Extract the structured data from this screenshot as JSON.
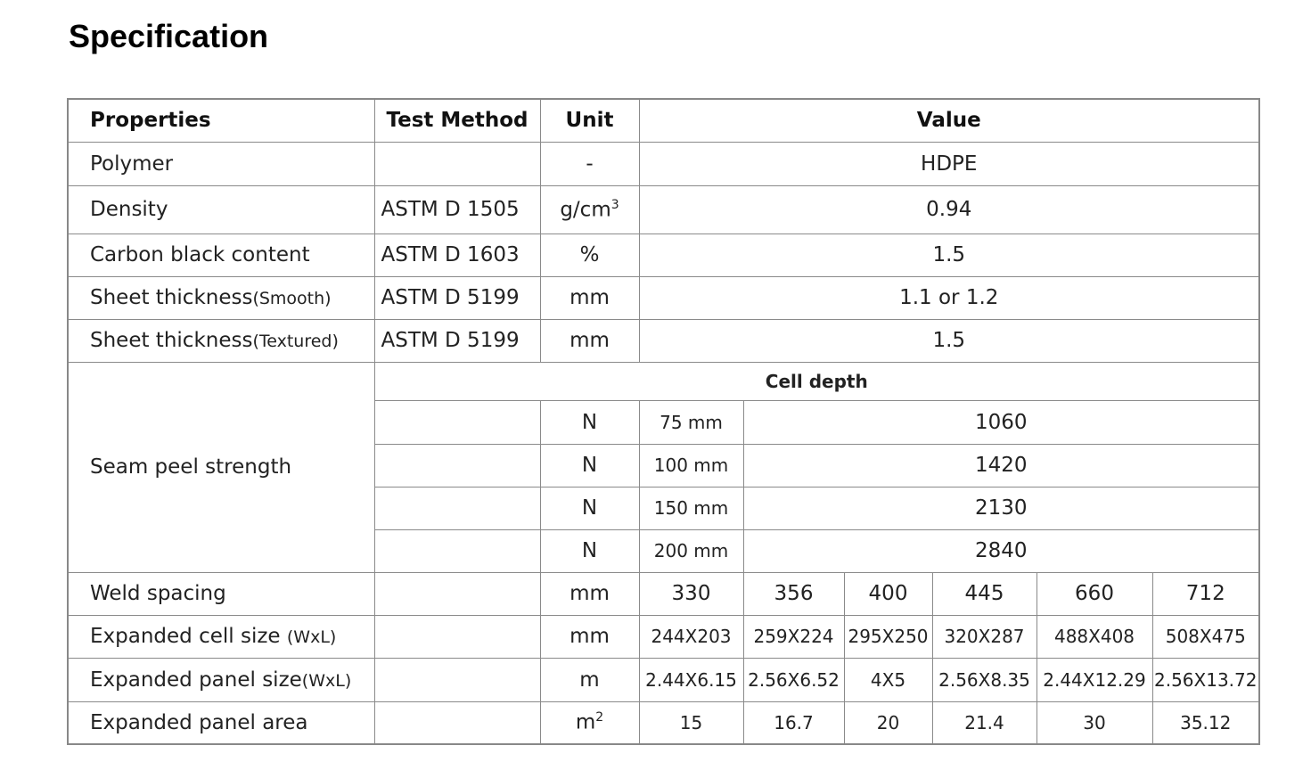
{
  "title": "Specification",
  "header": {
    "properties": "Properties",
    "test_method": "Test Method",
    "unit": "Unit",
    "value": "Value"
  },
  "rows": [
    {
      "property": "Polymer",
      "method": "",
      "unit": "-",
      "value": "HDPE"
    },
    {
      "property": "Density",
      "method": "ASTM D 1505",
      "unit": "g/cm",
      "unit_sup": "3",
      "value": "0.94"
    },
    {
      "property": "Carbon black content",
      "method": "ASTM D 1603",
      "unit": "%",
      "value": "1.5"
    },
    {
      "property": "Sheet thickness",
      "property_note": "(Smooth)",
      "method": "ASTM D 5199",
      "unit": "mm",
      "value": "1.1 or 1.2"
    },
    {
      "property": "Sheet thickness",
      "property_note": "(Textured)",
      "method": "ASTM D 5199",
      "unit": "mm",
      "value": "1.5"
    }
  ],
  "seam": {
    "property": "Seam peel strength",
    "cell_depth_label": "Cell depth",
    "rows": [
      {
        "unit": "N",
        "depth": "75 mm",
        "value": "1060"
      },
      {
        "unit": "N",
        "depth": "100 mm",
        "value": "1420"
      },
      {
        "unit": "N",
        "depth": "150 mm",
        "value": "2130"
      },
      {
        "unit": "N",
        "depth": "200 mm",
        "value": "2840"
      }
    ]
  },
  "multi": [
    {
      "property": "Weld spacing",
      "note": "",
      "unit": "mm",
      "values": [
        "330",
        "356",
        "400",
        "445",
        "660",
        "712"
      ]
    },
    {
      "property": "Expanded cell size ",
      "note": "(WxL)",
      "unit": "mm",
      "values": [
        "244X203",
        "259X224",
        "295X250",
        "320X287",
        "488X408",
        "508X475"
      ]
    },
    {
      "property": "Expanded panel size",
      "note": "(WxL)",
      "unit": "m",
      "values": [
        "2.44X6.15",
        "2.56X6.52",
        "4X5",
        "2.56X8.35",
        "2.44X12.29",
        "2.56X13.72"
      ]
    },
    {
      "property": "Expanded panel area",
      "note": "",
      "unit": "m",
      "unit_sup": "2",
      "values": [
        "15",
        "16.7",
        "20",
        "21.4",
        "30",
        "35.12"
      ]
    }
  ]
}
